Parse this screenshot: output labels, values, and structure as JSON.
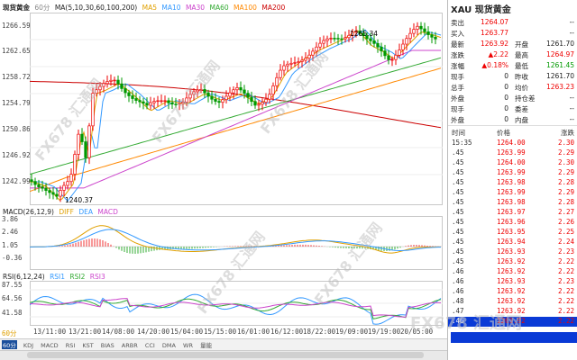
{
  "chart_title": "现货黄金",
  "period": "60分",
  "ma_header": {
    "label": "MA(5,10,30,60,100,200)",
    "items": [
      {
        "name": "MA5",
        "color": "#e0a000"
      },
      {
        "name": "MA10",
        "color": "#3399ff"
      },
      {
        "name": "MA30",
        "color": "#cc44cc"
      },
      {
        "name": "MA60",
        "color": "#33aa33"
      },
      {
        "name": "MA100",
        "color": "#ff8800"
      },
      {
        "name": "MA200",
        "color": "#cc0000"
      }
    ]
  },
  "price_axis": [
    "1266.59",
    "1262.65",
    "1258.72",
    "1254.79",
    "1250.86",
    "1246.92",
    "1242.99"
  ],
  "annotations": {
    "high": "1265.34",
    "low": "1240.37"
  },
  "macd_header": {
    "label": "MACD(26,12,9)",
    "items": [
      {
        "name": "DIFF",
        "color": "#e0a000"
      },
      {
        "name": "DEA",
        "color": "#3399ff"
      },
      {
        "name": "MACD",
        "color": "#cc44cc"
      }
    ]
  },
  "macd_axis": [
    "3.86",
    "2.46",
    "1.05",
    "-0.36"
  ],
  "rsi_header": {
    "label": "RSI(6,12,24)",
    "items": [
      {
        "name": "RSI1",
        "color": "#3399ff"
      },
      {
        "name": "RSI2",
        "color": "#33aa33"
      },
      {
        "name": "RSI3",
        "color": "#cc44cc"
      }
    ]
  },
  "rsi_axis": [
    "87.55",
    "64.56",
    "41.58"
  ],
  "rsi_left_label": "60分",
  "x_axis": [
    "13/11:00",
    "13/21:00",
    "14/08:00",
    "14/20:00",
    "15/04:00",
    "15/15:00",
    "16/01:00",
    "16/12:00",
    "18/22:00",
    "19/09:00",
    "19/19:00",
    "20/05:00"
  ],
  "toolbar": {
    "left": "60分",
    "items": [
      "KDJ",
      "MACD",
      "RSI",
      "KST",
      "BIAS",
      "ARBR",
      "CCI",
      "DMA",
      "WR",
      "量能"
    ]
  },
  "watermark": "FX678 汇通网",
  "quote": {
    "symbol": "XAU",
    "name": "现货黄金",
    "rows": [
      {
        "l1": "卖出",
        "v1": "1264.07",
        "l2": "",
        "v2": "--"
      },
      {
        "l1": "买入",
        "v1": "1263.77",
        "l2": "",
        "v2": "--"
      },
      {
        "l1": "最新",
        "v1": "1263.92",
        "l2": "开盘",
        "v2": "1261.70"
      },
      {
        "l1": "涨跌",
        "v1": "▲2.22",
        "l2": "最高",
        "v2": "1264.97"
      },
      {
        "l1": "涨幅",
        "v1": "▲0.18%",
        "l2": "最低",
        "v2": "1261.45"
      },
      {
        "l1": "现手",
        "v1": "0",
        "l2": "昨收",
        "v2": "1261.70"
      },
      {
        "l1": "总手",
        "v1": "0",
        "l2": "均价",
        "v2": "1263.23"
      },
      {
        "l1": "外盘",
        "v1": "0",
        "l2": "持仓差",
        "v2": "--"
      },
      {
        "l1": "现手",
        "v1": "0",
        "l2": "委差",
        "v2": "--"
      },
      {
        "l1": "外盘",
        "v1": "0",
        "l2": "内盘",
        "v2": "--"
      }
    ],
    "tick_header": {
      "time": "时间",
      "price": "价格",
      "chg": "涨跌"
    },
    "ticks": [
      {
        "t": "15:35",
        "p": "1264.00",
        "c": "2.30"
      },
      {
        "t": ".45",
        "p": "1263.99",
        "c": "2.29"
      },
      {
        "t": ".45",
        "p": "1264.00",
        "c": "2.30"
      },
      {
        "t": ".45",
        "p": "1263.99",
        "c": "2.29"
      },
      {
        "t": ".45",
        "p": "1263.98",
        "c": "2.28"
      },
      {
        "t": ".45",
        "p": "1263.99",
        "c": "2.29"
      },
      {
        "t": ".45",
        "p": "1263.98",
        "c": "2.28"
      },
      {
        "t": ".45",
        "p": "1263.97",
        "c": "2.27"
      },
      {
        "t": ".45",
        "p": "1263.96",
        "c": "2.26"
      },
      {
        "t": ".45",
        "p": "1263.95",
        "c": "2.25"
      },
      {
        "t": ".45",
        "p": "1263.94",
        "c": "2.24"
      },
      {
        "t": ".45",
        "p": "1263.93",
        "c": "2.23"
      },
      {
        "t": ".45",
        "p": "1263.92",
        "c": "2.22"
      },
      {
        "t": ".46",
        "p": "1263.92",
        "c": "2.22"
      },
      {
        "t": ".46",
        "p": "1263.93",
        "c": "2.23"
      },
      {
        "t": ".46",
        "p": "1263.92",
        "c": "2.22"
      },
      {
        "t": ".48",
        "p": "1263.92",
        "c": "2.22"
      },
      {
        "t": ".47",
        "p": "1263.92",
        "c": "2.22"
      },
      {
        "t": ".46",
        "p": "1263.92",
        "c": "2.22"
      }
    ]
  }
}
